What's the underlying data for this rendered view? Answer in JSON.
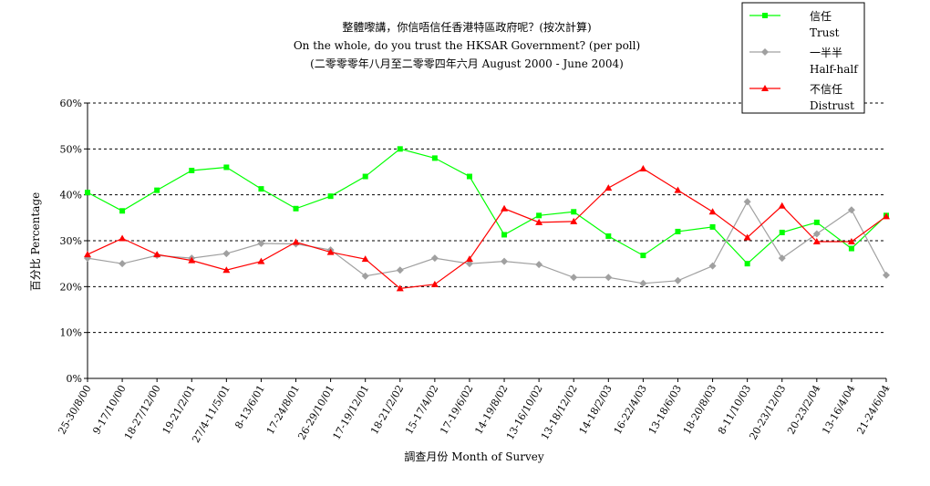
{
  "chart_data": {
    "type": "line",
    "title_lines": [
      "整體嚟講，你信唔信任香港特區政府呢？(按次計算)",
      "On the whole, do you trust the HKSAR Government? (per poll)",
      "(二零零零年八月至二零零四年六月 August 2000 - June 2004)"
    ],
    "xlabel": "調查月份 Month of Survey",
    "ylabel": "百分比 Percentage",
    "ylim": [
      0,
      60
    ],
    "yticks": [
      "0%",
      "10%",
      "20%",
      "30%",
      "40%",
      "50%",
      "60%"
    ],
    "grid": true,
    "legend_position": "top-right",
    "categories": [
      "25-30/8/00",
      "9-17/10/00",
      "18-27/12/00",
      "19-21/2/01",
      "27/4-11/5/01",
      "8-13/6/01",
      "17-24/8/01",
      "26-29/10/01",
      "17-19/12/01",
      "18-21/2/02",
      "15-17/4/02",
      "17-19/6/02",
      "14-19/8/02",
      "13-16/10/02",
      "13-18/12/02",
      "14-18/2/03",
      "16-22/4/03",
      "13-18/6/03",
      "18-20/8/03",
      "8-11/10/03",
      "20-23/12/03",
      "20-23/2/04",
      "13-16/4/04",
      "21-24/6/04"
    ],
    "series": [
      {
        "name": "信任",
        "name_en": "Trust",
        "color": "#00ff00",
        "marker": "square",
        "values": [
          40.5,
          36.5,
          41,
          45.3,
          46,
          41.3,
          37,
          39.7,
          44,
          50,
          48,
          44,
          31.3,
          35.5,
          36.3,
          31,
          26.8,
          32,
          33,
          25,
          31.8,
          34,
          28.3,
          35.5
        ]
      },
      {
        "name": "一半半",
        "name_en": "Half-half",
        "color": "#a0a0a0",
        "marker": "diamond",
        "values": [
          26.2,
          25,
          26.8,
          26.2,
          27.2,
          29.4,
          29.3,
          28,
          22.3,
          23.6,
          26.2,
          25,
          25.5,
          24.8,
          22,
          22,
          20.7,
          21.3,
          24.5,
          38.5,
          26.2,
          31.5,
          36.7,
          22.5
        ]
      },
      {
        "name": "不信任",
        "name_en": "Distrust",
        "color": "#ff0000",
        "marker": "triangle",
        "values": [
          27,
          30.5,
          27,
          25.7,
          23.6,
          25.5,
          29.7,
          27.5,
          26,
          19.6,
          20.5,
          26,
          37,
          34,
          34.2,
          41.5,
          45.7,
          41,
          36.3,
          30.7,
          37.6,
          29.8,
          29.8,
          35.3
        ]
      }
    ]
  }
}
